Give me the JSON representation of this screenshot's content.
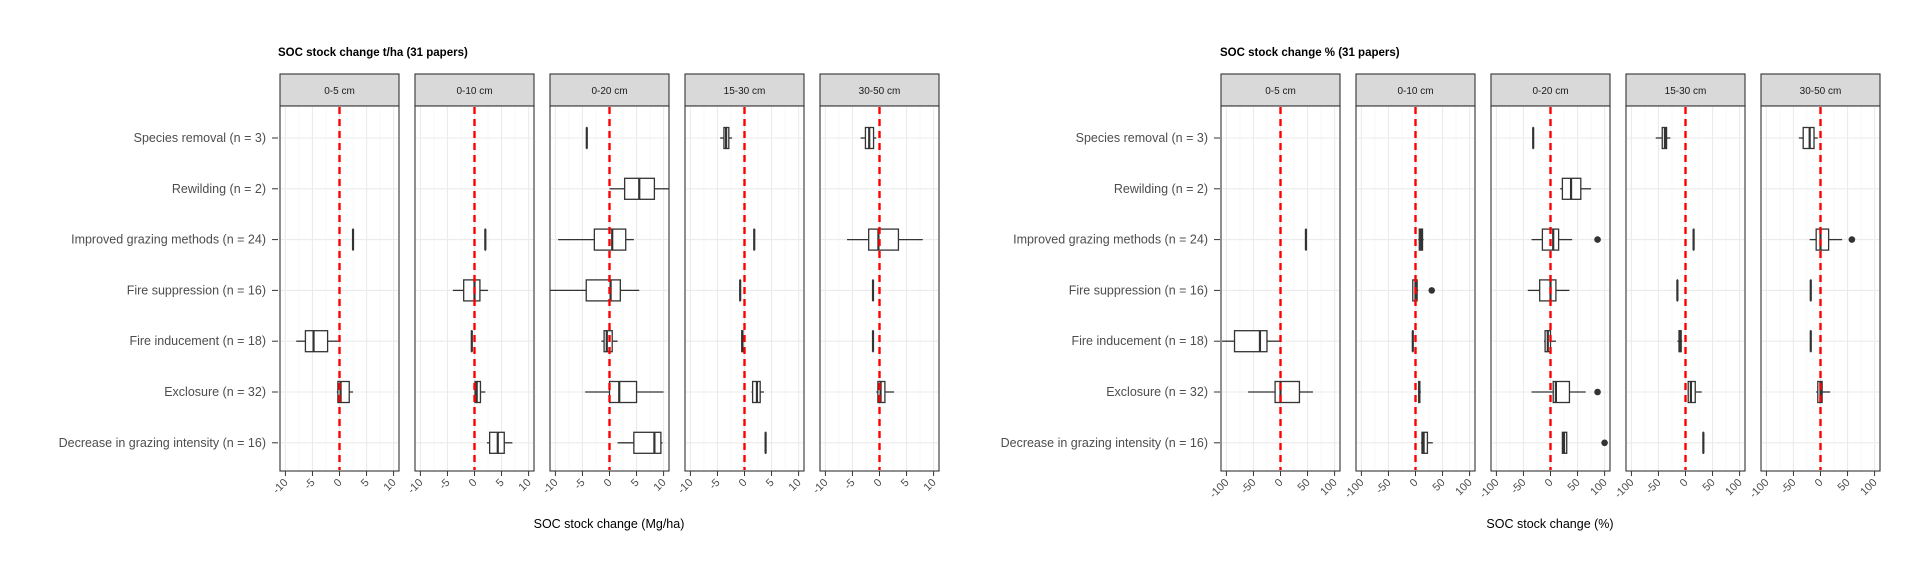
{
  "chart_data": [
    {
      "type": "boxplot",
      "title": "SOC stock change t/ha (31 papers)",
      "xlabel": "SOC stock change (Mg/ha)",
      "xlim": [
        -11,
        11
      ],
      "xticks": [
        -10,
        -5,
        0,
        5,
        10
      ],
      "xtick_labels": [
        "-10",
        "-5",
        "0",
        "5",
        "10"
      ],
      "reference_line": 0,
      "facets": [
        "0-5 cm",
        "0-10 cm",
        "0-20 cm",
        "15-30 cm",
        "30-50 cm"
      ],
      "categories": [
        "Species removal (n = 3)",
        "Rewilding (n = 2)",
        "Improved grazing methods (n = 24)",
        "Fire suppression (n = 16)",
        "Fire inducement (n = 18)",
        "Exclosure (n = 32)",
        "Decrease in grazing intensity (n = 16)"
      ],
      "boxes": [
        {
          "facet": "0-5 cm",
          "category": "Improved grazing methods (n = 24)",
          "min": 2.5,
          "q1": 2.5,
          "median": 2.5,
          "q3": 2.5,
          "max": 2.5,
          "outliers": []
        },
        {
          "facet": "0-5 cm",
          "category": "Fire inducement (n = 18)",
          "min": -8,
          "q1": -6.3,
          "median": -4.8,
          "q3": -2.2,
          "max": -0.2,
          "outliers": []
        },
        {
          "facet": "0-5 cm",
          "category": "Exclosure (n = 32)",
          "min": -0.5,
          "q1": -0.3,
          "median": 0.2,
          "q3": 1.8,
          "max": 2.5,
          "outliers": []
        },
        {
          "facet": "0-10 cm",
          "category": "Improved grazing methods (n = 24)",
          "min": 2,
          "q1": 2,
          "median": 2,
          "q3": 2,
          "max": 2,
          "outliers": []
        },
        {
          "facet": "0-10 cm",
          "category": "Fire suppression (n = 16)",
          "min": -4,
          "q1": -2,
          "median": 0,
          "q3": 1,
          "max": 2.5,
          "outliers": []
        },
        {
          "facet": "0-10 cm",
          "category": "Fire inducement (n = 18)",
          "min": -0.5,
          "q1": -0.5,
          "median": -0.5,
          "q3": -0.5,
          "max": -0.5,
          "outliers": []
        },
        {
          "facet": "0-10 cm",
          "category": "Exclosure (n = 32)",
          "min": 0.1,
          "q1": 0.1,
          "median": 0.4,
          "q3": 1.1,
          "max": 2,
          "outliers": []
        },
        {
          "facet": "0-10 cm",
          "category": "Decrease in grazing intensity (n = 16)",
          "min": 2.3,
          "q1": 2.8,
          "median": 4.3,
          "q3": 5.5,
          "max": 7,
          "outliers": []
        },
        {
          "facet": "0-20 cm",
          "category": "Species removal (n = 3)",
          "min": -4.2,
          "q1": -4.2,
          "median": -4.2,
          "q3": -4.2,
          "max": -4.2,
          "outliers": []
        },
        {
          "facet": "0-20 cm",
          "category": "Rewilding (n = 2)",
          "min": 0,
          "q1": 2.8,
          "median": 5.5,
          "q3": 8.3,
          "max": 11,
          "outliers": []
        },
        {
          "facet": "0-20 cm",
          "category": "Improved grazing methods (n = 24)",
          "min": -9.5,
          "q1": -2.8,
          "median": 0.5,
          "q3": 3,
          "max": 4.5,
          "outliers": []
        },
        {
          "facet": "0-20 cm",
          "category": "Fire suppression (n = 16)",
          "min": -11,
          "q1": -4.3,
          "median": 0.2,
          "q3": 2,
          "max": 5.5,
          "outliers": []
        },
        {
          "facet": "0-20 cm",
          "category": "Fire inducement (n = 18)",
          "min": -1.5,
          "q1": -1,
          "median": -0.5,
          "q3": 0.5,
          "max": 1.5,
          "outliers": []
        },
        {
          "facet": "0-20 cm",
          "category": "Exclosure (n = 32)",
          "min": -4.5,
          "q1": 0,
          "median": 1.8,
          "q3": 5,
          "max": 10,
          "outliers": []
        },
        {
          "facet": "0-20 cm",
          "category": "Decrease in grazing intensity (n = 16)",
          "min": 1.5,
          "q1": 4.5,
          "median": 8.3,
          "q3": 9.5,
          "max": 9.8,
          "outliers": []
        },
        {
          "facet": "15-30 cm",
          "category": "Species removal (n = 3)",
          "min": -4.5,
          "q1": -3.8,
          "median": -3.4,
          "q3": -2.9,
          "max": -2.3,
          "outliers": []
        },
        {
          "facet": "15-30 cm",
          "category": "Improved grazing methods (n = 24)",
          "min": 1.8,
          "q1": 1.8,
          "median": 1.8,
          "q3": 1.8,
          "max": 1.8,
          "outliers": []
        },
        {
          "facet": "15-30 cm",
          "category": "Fire suppression (n = 16)",
          "min": -0.8,
          "q1": -0.8,
          "median": -0.8,
          "q3": -0.8,
          "max": -0.8,
          "outliers": []
        },
        {
          "facet": "15-30 cm",
          "category": "Fire inducement (n = 18)",
          "min": -0.6,
          "q1": -0.5,
          "median": -0.4,
          "q3": -0.3,
          "max": -0.2,
          "outliers": []
        },
        {
          "facet": "15-30 cm",
          "category": "Exclosure (n = 32)",
          "min": 1.3,
          "q1": 1.5,
          "median": 2.3,
          "q3": 2.9,
          "max": 3.6,
          "outliers": []
        },
        {
          "facet": "15-30 cm",
          "category": "Decrease in grazing intensity (n = 16)",
          "min": 3.9,
          "q1": 3.9,
          "median": 3.9,
          "q3": 3.9,
          "max": 3.9,
          "outliers": []
        },
        {
          "facet": "30-50 cm",
          "category": "Species removal (n = 3)",
          "min": -3.5,
          "q1": -2.6,
          "median": -1.9,
          "q3": -1.1,
          "max": -0.6,
          "outliers": []
        },
        {
          "facet": "30-50 cm",
          "category": "Improved grazing methods (n = 24)",
          "min": -6,
          "q1": -2,
          "median": -0.2,
          "q3": 3.5,
          "max": 8,
          "outliers": []
        },
        {
          "facet": "30-50 cm",
          "category": "Fire suppression (n = 16)",
          "min": -1.2,
          "q1": -1.2,
          "median": -1.2,
          "q3": -1.2,
          "max": -1.2,
          "outliers": []
        },
        {
          "facet": "30-50 cm",
          "category": "Fire inducement (n = 18)",
          "min": -1.2,
          "q1": -1.2,
          "median": -1.2,
          "q3": -1.2,
          "max": -1.2,
          "outliers": []
        },
        {
          "facet": "30-50 cm",
          "category": "Exclosure (n = 32)",
          "min": -0.6,
          "q1": -0.3,
          "median": 0.2,
          "q3": 1,
          "max": 2.7,
          "outliers": []
        }
      ]
    },
    {
      "type": "boxplot",
      "title": "SOC stock change % (31 papers)",
      "xlabel": "SOC stock change (%)",
      "xlim": [
        -110,
        110
      ],
      "xticks": [
        -100,
        -50,
        0,
        50,
        100
      ],
      "xtick_labels": [
        "-100",
        "-50",
        "0",
        "50",
        "100"
      ],
      "reference_line": 0,
      "facets": [
        "0-5 cm",
        "0-10 cm",
        "0-20 cm",
        "15-30 cm",
        "30-50 cm"
      ],
      "categories": [
        "Species removal (n = 3)",
        "Rewilding (n = 2)",
        "Improved grazing methods (n = 24)",
        "Fire suppression (n = 16)",
        "Fire inducement (n = 18)",
        "Exclosure (n = 32)",
        "Decrease in grazing intensity (n = 16)"
      ],
      "boxes": [
        {
          "facet": "0-5 cm",
          "category": "Improved grazing methods (n = 24)",
          "min": 47,
          "q1": 47,
          "median": 47,
          "q3": 47,
          "max": 47,
          "outliers": []
        },
        {
          "facet": "0-5 cm",
          "category": "Fire inducement (n = 18)",
          "min": -108,
          "q1": -85,
          "median": -38,
          "q3": -25,
          "max": 0,
          "outliers": []
        },
        {
          "facet": "0-5 cm",
          "category": "Exclosure (n = 32)",
          "min": -60,
          "q1": -10,
          "median": 0,
          "q3": 35,
          "max": 60,
          "outliers": []
        },
        {
          "facet": "0-10 cm",
          "category": "Improved grazing methods (n = 24)",
          "min": 5,
          "q1": 7,
          "median": 10,
          "q3": 13,
          "max": 15,
          "outliers": []
        },
        {
          "facet": "0-10 cm",
          "category": "Fire suppression (n = 16)",
          "min": -5,
          "q1": -5,
          "median": 0,
          "q3": 3,
          "max": 5,
          "outliers": [
            30
          ]
        },
        {
          "facet": "0-10 cm",
          "category": "Fire inducement (n = 18)",
          "min": -5,
          "q1": -5,
          "median": -5,
          "q3": -5,
          "max": -5,
          "outliers": []
        },
        {
          "facet": "0-10 cm",
          "category": "Exclosure (n = 32)",
          "min": 5,
          "q1": 6,
          "median": 7,
          "q3": 8,
          "max": 10,
          "outliers": []
        },
        {
          "facet": "0-10 cm",
          "category": "Decrease in grazing intensity (n = 16)",
          "min": 10,
          "q1": 12,
          "median": 15,
          "q3": 22,
          "max": 32,
          "outliers": []
        },
        {
          "facet": "0-20 cm",
          "category": "Species removal (n = 3)",
          "min": -32,
          "q1": -32,
          "median": -32,
          "q3": -32,
          "max": -32,
          "outliers": []
        },
        {
          "facet": "0-20 cm",
          "category": "Rewilding (n = 2)",
          "min": 18,
          "q1": 22,
          "median": 38,
          "q3": 56,
          "max": 75,
          "outliers": []
        },
        {
          "facet": "0-20 cm",
          "category": "Improved grazing methods (n = 24)",
          "min": -35,
          "q1": -15,
          "median": 5,
          "q3": 15,
          "max": 40,
          "outliers": [
            87
          ]
        },
        {
          "facet": "0-20 cm",
          "category": "Fire suppression (n = 16)",
          "min": -42,
          "q1": -20,
          "median": 0,
          "q3": 10,
          "max": 35,
          "outliers": []
        },
        {
          "facet": "0-20 cm",
          "category": "Fire inducement (n = 18)",
          "min": -12,
          "q1": -10,
          "median": -5,
          "q3": 0,
          "max": 10,
          "outliers": []
        },
        {
          "facet": "0-20 cm",
          "category": "Exclosure (n = 32)",
          "min": -35,
          "q1": 5,
          "median": 10,
          "q3": 35,
          "max": 65,
          "outliers": [
            87
          ]
        },
        {
          "facet": "0-20 cm",
          "category": "Decrease in grazing intensity (n = 16)",
          "min": 22,
          "q1": 22,
          "median": 25,
          "q3": 30,
          "max": 30,
          "outliers": [
            100
          ]
        },
        {
          "facet": "15-30 cm",
          "category": "Species removal (n = 3)",
          "min": -55,
          "q1": -43,
          "median": -38,
          "q3": -35,
          "max": -28,
          "outliers": []
        },
        {
          "facet": "15-30 cm",
          "category": "Improved grazing methods (n = 24)",
          "min": 15,
          "q1": 15,
          "median": 15,
          "q3": 15,
          "max": 15,
          "outliers": []
        },
        {
          "facet": "15-30 cm",
          "category": "Fire suppression (n = 16)",
          "min": -15,
          "q1": -15,
          "median": -15,
          "q3": -15,
          "max": -15,
          "outliers": []
        },
        {
          "facet": "15-30 cm",
          "category": "Fire inducement (n = 18)",
          "min": -15,
          "q1": -12,
          "median": -10,
          "q3": -8,
          "max": -6,
          "outliers": []
        },
        {
          "facet": "15-30 cm",
          "category": "Exclosure (n = 32)",
          "min": 5,
          "q1": 5,
          "median": 10,
          "q3": 18,
          "max": 30,
          "outliers": []
        },
        {
          "facet": "15-30 cm",
          "category": "Decrease in grazing intensity (n = 16)",
          "min": 33,
          "q1": 33,
          "median": 33,
          "q3": 33,
          "max": 33,
          "outliers": []
        },
        {
          "facet": "30-50 cm",
          "category": "Species removal (n = 3)",
          "min": -40,
          "q1": -32,
          "median": -20,
          "q3": -12,
          "max": -5,
          "outliers": []
        },
        {
          "facet": "30-50 cm",
          "category": "Improved grazing methods (n = 24)",
          "min": -20,
          "q1": -8,
          "median": 0,
          "q3": 15,
          "max": 40,
          "outliers": [
            58
          ]
        },
        {
          "facet": "30-50 cm",
          "category": "Fire suppression (n = 16)",
          "min": -18,
          "q1": -18,
          "median": -18,
          "q3": -18,
          "max": -18,
          "outliers": []
        },
        {
          "facet": "30-50 cm",
          "category": "Fire inducement (n = 18)",
          "min": -18,
          "q1": -18,
          "median": -18,
          "q3": -18,
          "max": -18,
          "outliers": []
        },
        {
          "facet": "30-50 cm",
          "category": "Exclosure (n = 32)",
          "min": -8,
          "q1": -5,
          "median": 0,
          "q3": 3,
          "max": 18,
          "outliers": []
        }
      ]
    }
  ]
}
